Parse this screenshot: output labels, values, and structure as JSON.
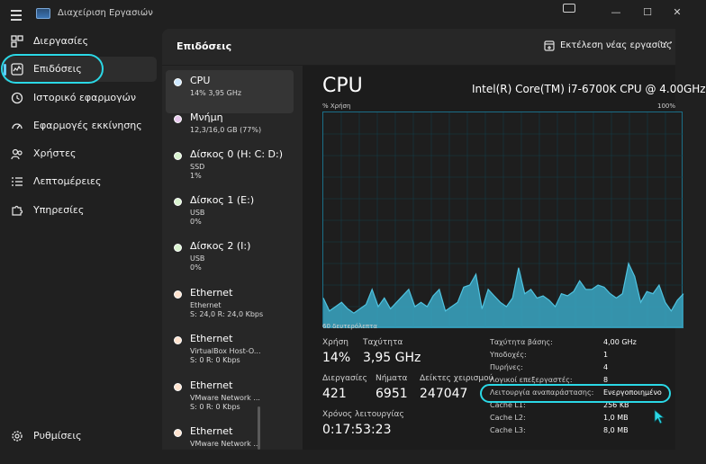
{
  "window": {
    "title": "Διαχείριση Εργασιών",
    "controls": {
      "minimize": "—",
      "maximize": "☐",
      "close": "✕"
    }
  },
  "nav": {
    "items": [
      {
        "label": "Διεργασίες",
        "icon": "processes-grid-icon"
      },
      {
        "label": "Επιδόσεις",
        "icon": "performance-chart-icon",
        "active": true
      },
      {
        "label": "Ιστορικό εφαρμογών",
        "icon": "history-clock-icon"
      },
      {
        "label": "Εφαρμογές εκκίνησης",
        "icon": "startup-speedometer-icon"
      },
      {
        "label": "Χρήστες",
        "icon": "users-icon"
      },
      {
        "label": "Λεπτομέρειες",
        "icon": "details-list-icon"
      },
      {
        "label": "Υπηρεσίες",
        "icon": "services-puzzle-icon"
      }
    ],
    "settings": {
      "label": "Ρυθμίσεις",
      "icon": "gear-icon"
    }
  },
  "header": {
    "title": "Επιδόσεις",
    "run_task_label": "Εκτέλεση νέας εργασίας",
    "more_label": "···"
  },
  "devices": [
    {
      "name": "CPU",
      "line1": "14% 3,95 GHz",
      "line2": "",
      "dot_color": "#cde8ff",
      "active": true
    },
    {
      "name": "Μνήμη",
      "line1": "12,3/16,0 GB (77%)",
      "line2": "",
      "dot_color": "#e8c9ee"
    },
    {
      "name": "Δίσκος 0 (H: C: D:)",
      "line1": "SSD",
      "line2": "1%",
      "dot_color": "#d9f3cf"
    },
    {
      "name": "Δίσκος 1 (E:)",
      "line1": "USB",
      "line2": "0%",
      "dot_color": "#d9f3cf"
    },
    {
      "name": "Δίσκος 2 (I:)",
      "line1": "USB",
      "line2": "0%",
      "dot_color": "#d9f3cf"
    },
    {
      "name": "Ethernet",
      "line1": "Ethernet",
      "line2": "S: 24,0 R: 24,0 Kbps",
      "dot_color": "#ffe3cf"
    },
    {
      "name": "Ethernet",
      "line1": "VirtualBox Host-O...",
      "line2": "S: 0 R: 0 Kbps",
      "dot_color": "#ffe3cf"
    },
    {
      "name": "Ethernet",
      "line1": "VMware Network ...",
      "line2": "S: 0 R: 0 Kbps",
      "dot_color": "#ffe3cf"
    },
    {
      "name": "Ethernet",
      "line1": "VMware Network ...",
      "line2": "",
      "dot_color": "#ffe3cf"
    }
  ],
  "perf": {
    "title": "CPU",
    "model": "Intel(R) Core(TM) i7-6700K CPU @ 4.00GHz",
    "axis_top_left": "% Χρήση",
    "axis_top_right": "100%",
    "axis_bottom": "60 δευτερόλεπτα",
    "stats": {
      "usage_label": "Χρήση",
      "usage_value": "14%",
      "speed_label": "Ταχύτητα",
      "speed_value": "3,95 GHz",
      "processes_label": "Διεργασίες",
      "processes_value": "421",
      "threads_label": "Νήματα",
      "threads_value": "6951",
      "handles_label": "Δείκτες χειρισμού",
      "handles_value": "247047",
      "uptime_label": "Χρόνος λειτουργίας",
      "uptime_value": "0:17:53:23"
    },
    "specs": [
      {
        "label": "Ταχύτητα βάσης:",
        "value": "4,00 GHz"
      },
      {
        "label": "Υποδοχές:",
        "value": "1"
      },
      {
        "label": "Πυρήνες:",
        "value": "4"
      },
      {
        "label": "Λογικοί επεξεργαστές:",
        "value": "8"
      },
      {
        "label": "Λειτουργία αναπαράστασης:",
        "value": "Ενεργοποιημένο"
      },
      {
        "label": "Cache L1:",
        "value": "256 KB"
      },
      {
        "label": "Cache L2:",
        "value": "1,0 MB"
      },
      {
        "label": "Cache L3:",
        "value": "8,0 MB"
      }
    ]
  },
  "colors": {
    "accent": "#2bd8e6",
    "chart_fill": "#3aa7c4",
    "chart_line": "#4fc3e0"
  },
  "chart_data": {
    "type": "area",
    "x_range_seconds": 60,
    "ylim": [
      0,
      100
    ],
    "series": [
      {
        "values": [
          14,
          8,
          10,
          12,
          9,
          7,
          9,
          11,
          18,
          10,
          14,
          9,
          12,
          15,
          18,
          10,
          12,
          10,
          15,
          18,
          8,
          10,
          12,
          19,
          20,
          25,
          9,
          18,
          15,
          12,
          10,
          14,
          28,
          16,
          18,
          14,
          15,
          13,
          10,
          16,
          15,
          17,
          22,
          18,
          18,
          20,
          19,
          16,
          14,
          16,
          30,
          24,
          12,
          17,
          16,
          20,
          12,
          8,
          13,
          16
        ]
      }
    ]
  }
}
